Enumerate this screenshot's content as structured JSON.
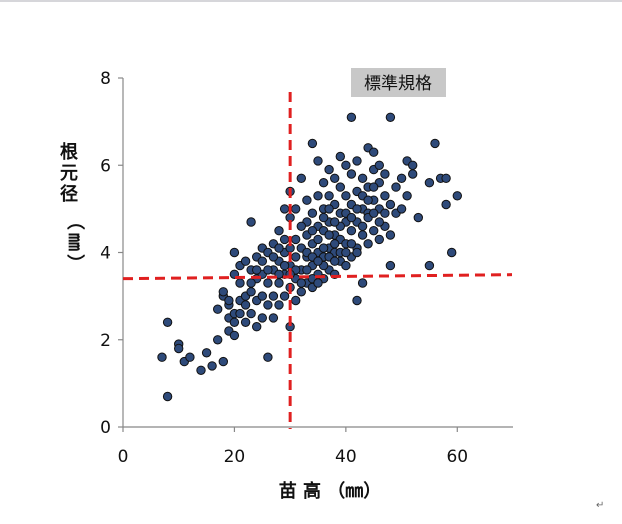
{
  "chart_data": {
    "type": "scatter",
    "title": "",
    "xlabel": "苗 高 （㎜）",
    "ylabel": "根元径（㎜）",
    "xlim": [
      0,
      70
    ],
    "ylim": [
      0,
      8
    ],
    "xticks": [
      0,
      20,
      40,
      60
    ],
    "yticks": [
      0,
      2,
      4,
      6,
      8
    ],
    "grid": false,
    "marker_color": "#2e4a7a",
    "marker_edge": "#111111",
    "reference_lines": {
      "x": 30,
      "y": 3.4,
      "color": "#e02020",
      "style": "dashed"
    },
    "annotation": {
      "text": "標準規格",
      "background": "#c8c8c8"
    },
    "points": [
      [
        7.0,
        1.6
      ],
      [
        8.0,
        0.7
      ],
      [
        8.0,
        2.4
      ],
      [
        10.0,
        1.9
      ],
      [
        10.0,
        1.8
      ],
      [
        11.0,
        1.5
      ],
      [
        12.0,
        1.6
      ],
      [
        14.0,
        1.3
      ],
      [
        15.0,
        1.7
      ],
      [
        16.0,
        1.4
      ],
      [
        17.0,
        2.0
      ],
      [
        17.0,
        2.7
      ],
      [
        18.0,
        1.5
      ],
      [
        18.0,
        3.0
      ],
      [
        18.0,
        3.1
      ],
      [
        19.0,
        2.2
      ],
      [
        19.0,
        2.5
      ],
      [
        19.0,
        2.8
      ],
      [
        20.0,
        2.1
      ],
      [
        20.0,
        2.6
      ],
      [
        20.0,
        3.5
      ],
      [
        20.0,
        4.0
      ],
      [
        21.0,
        2.9
      ],
      [
        21.0,
        3.3
      ],
      [
        21.0,
        3.7
      ],
      [
        22.0,
        2.4
      ],
      [
        22.0,
        3.0
      ],
      [
        22.0,
        3.8
      ],
      [
        23.0,
        2.6
      ],
      [
        23.0,
        3.1
      ],
      [
        23.0,
        3.6
      ],
      [
        23.0,
        4.7
      ],
      [
        24.0,
        2.3
      ],
      [
        24.0,
        2.9
      ],
      [
        24.0,
        3.4
      ],
      [
        24.0,
        3.9
      ],
      [
        25.0,
        2.5
      ],
      [
        25.0,
        3.0
      ],
      [
        25.0,
        3.5
      ],
      [
        25.0,
        4.1
      ],
      [
        26.0,
        1.6
      ],
      [
        26.0,
        2.8
      ],
      [
        26.0,
        3.3
      ],
      [
        26.0,
        4.0
      ],
      [
        27.0,
        2.5
      ],
      [
        27.0,
        3.0
      ],
      [
        27.0,
        3.6
      ],
      [
        27.0,
        4.2
      ],
      [
        28.0,
        2.8
      ],
      [
        28.0,
        3.3
      ],
      [
        28.0,
        3.8
      ],
      [
        28.0,
        4.5
      ],
      [
        29.0,
        3.0
      ],
      [
        29.0,
        3.5
      ],
      [
        29.0,
        4.0
      ],
      [
        29.0,
        5.0
      ],
      [
        30.0,
        2.3
      ],
      [
        30.0,
        3.2
      ],
      [
        30.0,
        3.7
      ],
      [
        30.0,
        4.8
      ],
      [
        30.0,
        5.4
      ],
      [
        31.0,
        2.9
      ],
      [
        31.0,
        3.4
      ],
      [
        31.0,
        4.3
      ],
      [
        31.0,
        5.0
      ],
      [
        32.0,
        3.1
      ],
      [
        32.0,
        3.6
      ],
      [
        32.0,
        4.1
      ],
      [
        32.0,
        5.7
      ],
      [
        33.0,
        3.3
      ],
      [
        33.0,
        3.9
      ],
      [
        33.0,
        4.4
      ],
      [
        33.0,
        5.2
      ],
      [
        34.0,
        3.2
      ],
      [
        34.0,
        3.7
      ],
      [
        34.0,
        4.2
      ],
      [
        34.0,
        4.9
      ],
      [
        34.0,
        6.5
      ],
      [
        35.0,
        3.5
      ],
      [
        35.0,
        4.0
      ],
      [
        35.0,
        4.6
      ],
      [
        35.0,
        5.3
      ],
      [
        35.0,
        6.1
      ],
      [
        36.0,
        3.4
      ],
      [
        36.0,
        3.9
      ],
      [
        36.0,
        4.5
      ],
      [
        36.0,
        5.0
      ],
      [
        36.0,
        5.6
      ],
      [
        37.0,
        3.6
      ],
      [
        37.0,
        4.1
      ],
      [
        37.0,
        4.7
      ],
      [
        37.0,
        5.3
      ],
      [
        37.0,
        5.9
      ],
      [
        38.0,
        3.5
      ],
      [
        38.0,
        4.0
      ],
      [
        38.0,
        4.4
      ],
      [
        38.0,
        5.1
      ],
      [
        38.0,
        5.7
      ],
      [
        39.0,
        3.8
      ],
      [
        39.0,
        4.3
      ],
      [
        39.0,
        4.9
      ],
      [
        39.0,
        5.5
      ],
      [
        39.0,
        6.2
      ],
      [
        40.0,
        3.7
      ],
      [
        40.0,
        4.2
      ],
      [
        40.0,
        4.7
      ],
      [
        40.0,
        5.3
      ],
      [
        40.0,
        6.0
      ],
      [
        41.0,
        3.9
      ],
      [
        41.0,
        4.5
      ],
      [
        41.0,
        5.1
      ],
      [
        41.0,
        5.8
      ],
      [
        41.0,
        7.1
      ],
      [
        42.0,
        2.9
      ],
      [
        42.0,
        4.1
      ],
      [
        42.0,
        4.7
      ],
      [
        42.0,
        5.4
      ],
      [
        42.0,
        6.1
      ],
      [
        43.0,
        3.3
      ],
      [
        43.0,
        4.4
      ],
      [
        43.0,
        5.0
      ],
      [
        43.0,
        5.7
      ],
      [
        44.0,
        4.2
      ],
      [
        44.0,
        4.9
      ],
      [
        44.0,
        5.5
      ],
      [
        44.0,
        6.4
      ],
      [
        45.0,
        4.5
      ],
      [
        45.0,
        5.2
      ],
      [
        45.0,
        5.9
      ],
      [
        45.0,
        6.3
      ],
      [
        46.0,
        4.3
      ],
      [
        46.0,
        5.0
      ],
      [
        46.0,
        5.6
      ],
      [
        46.0,
        6.0
      ],
      [
        47.0,
        4.6
      ],
      [
        47.0,
        5.3
      ],
      [
        47.0,
        5.8
      ],
      [
        48.0,
        3.7
      ],
      [
        48.0,
        4.4
      ],
      [
        48.0,
        5.1
      ],
      [
        48.0,
        7.1
      ],
      [
        49.0,
        4.9
      ],
      [
        49.0,
        5.5
      ],
      [
        50.0,
        5.0
      ],
      [
        50.0,
        5.7
      ],
      [
        51.0,
        5.3
      ],
      [
        51.0,
        6.1
      ],
      [
        52.0,
        5.8
      ],
      [
        52.0,
        6.0
      ],
      [
        53.0,
        4.8
      ],
      [
        55.0,
        3.7
      ],
      [
        55.0,
        5.6
      ],
      [
        56.0,
        6.5
      ],
      [
        57.0,
        5.7
      ],
      [
        58.0,
        5.1
      ],
      [
        58.0,
        5.7
      ],
      [
        59.0,
        4.0
      ],
      [
        60.0,
        5.3
      ],
      [
        33.0,
        4.0
      ],
      [
        34.0,
        3.9
      ],
      [
        35.0,
        4.3
      ],
      [
        36.0,
        4.1
      ],
      [
        37.0,
        4.4
      ],
      [
        38.0,
        4.2
      ],
      [
        39.0,
        4.0
      ],
      [
        36.0,
        3.7
      ],
      [
        35.0,
        3.8
      ],
      [
        34.0,
        4.5
      ],
      [
        33.0,
        4.7
      ],
      [
        37.0,
        3.9
      ],
      [
        38.0,
        3.8
      ],
      [
        40.0,
        4.0
      ],
      [
        41.0,
        4.2
      ],
      [
        42.0,
        4.0
      ],
      [
        43.0,
        4.6
      ],
      [
        44.0,
        4.8
      ],
      [
        45.0,
        4.9
      ],
      [
        46.0,
        4.7
      ],
      [
        47.0,
        4.9
      ],
      [
        39.0,
        4.6
      ],
      [
        40.0,
        4.9
      ],
      [
        41.0,
        4.8
      ],
      [
        42.0,
        5.0
      ],
      [
        43.0,
        5.3
      ],
      [
        44.0,
        5.2
      ],
      [
        45.0,
        5.5
      ],
      [
        31.0,
        3.9
      ],
      [
        32.0,
        4.6
      ],
      [
        33.0,
        3.6
      ],
      [
        34.0,
        3.4
      ],
      [
        35.0,
        3.3
      ],
      [
        36.0,
        4.8
      ],
      [
        37.0,
        5.0
      ],
      [
        38.0,
        4.7
      ],
      [
        29.0,
        4.3
      ],
      [
        28.0,
        4.1
      ],
      [
        27.0,
        3.9
      ],
      [
        26.0,
        3.6
      ],
      [
        25.0,
        3.8
      ],
      [
        24.0,
        3.6
      ],
      [
        23.0,
        3.3
      ],
      [
        22.0,
        2.8
      ],
      [
        21.0,
        2.6
      ],
      [
        20.0,
        2.4
      ],
      [
        19.0,
        2.9
      ],
      [
        31.0,
        3.6
      ],
      [
        32.0,
        3.3
      ],
      [
        30.0,
        3.5
      ],
      [
        30.0,
        4.1
      ],
      [
        29.0,
        3.7
      ],
      [
        28.0,
        3.5
      ]
    ]
  }
}
